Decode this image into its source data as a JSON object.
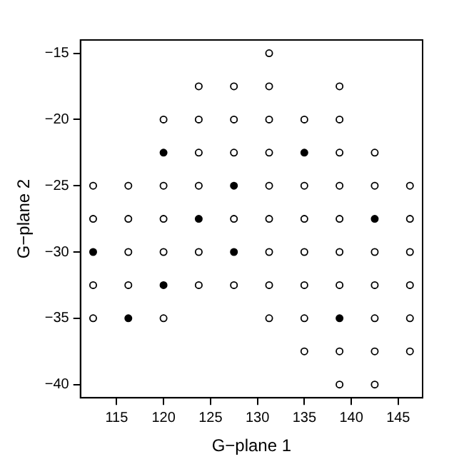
{
  "chart_data": {
    "type": "scatter",
    "xlabel": "G−plane 1",
    "ylabel": "G−plane 2",
    "xlim": [
      111.15,
      147.6
    ],
    "ylim": [
      -41,
      -14
    ],
    "xticks": [
      115,
      120,
      125,
      130,
      135,
      140,
      145
    ],
    "yticks": [
      -40,
      -35,
      -30,
      -25,
      -20,
      -15
    ],
    "grid": false,
    "legend": false,
    "marker": "circle",
    "series": [
      {
        "color": "#ffffff",
        "x": [
          112.5,
          112.5,
          112.5,
          112.5,
          116.25,
          116.25,
          116.25,
          116.25,
          120,
          120,
          120,
          120,
          120,
          123.75,
          123.75,
          123.75,
          123.75,
          123.75,
          123.75,
          127.5,
          127.5,
          127.5,
          127.5,
          127.5,
          131.25,
          131.25,
          131.25,
          131.25,
          131.25,
          131.25,
          131.25,
          131.25,
          131.25,
          135,
          135,
          135,
          135,
          135,
          135,
          135,
          138.75,
          138.75,
          138.75,
          138.75,
          138.75,
          138.75,
          138.75,
          138.75,
          138.75,
          142.5,
          142.5,
          142.5,
          142.5,
          142.5,
          142.5,
          142.5,
          146.25,
          146.25,
          146.25,
          146.25,
          146.25,
          146.25
        ],
        "values": [
          -25,
          -27.5,
          -32.5,
          -35,
          -25,
          -27.5,
          -30,
          -32.5,
          -20,
          -25,
          -27.5,
          -30,
          -35,
          -17.5,
          -20,
          -22.5,
          -25,
          -30,
          -32.5,
          -17.5,
          -20,
          -22.5,
          -27.5,
          -32.5,
          -15,
          -17.5,
          -20,
          -22.5,
          -25,
          -27.5,
          -30,
          -32.5,
          -35,
          -20,
          -25,
          -27.5,
          -30,
          -32.5,
          -35,
          -37.5,
          -17.5,
          -20,
          -22.5,
          -25,
          -27.5,
          -30,
          -32.5,
          -37.5,
          -40,
          -22.5,
          -25,
          -30,
          -32.5,
          -35,
          -37.5,
          -40,
          -25,
          -27.5,
          -30,
          -32.5,
          -35,
          -37.5
        ]
      },
      {
        "color": "#000000",
        "x": [
          112.5,
          116.25,
          120,
          120,
          123.75,
          127.5,
          127.5,
          135,
          138.75,
          142.5
        ],
        "values": [
          -30,
          -35,
          -22.5,
          -32.5,
          -27.5,
          -25,
          -30,
          -22.5,
          -35,
          -27.5
        ]
      }
    ]
  }
}
